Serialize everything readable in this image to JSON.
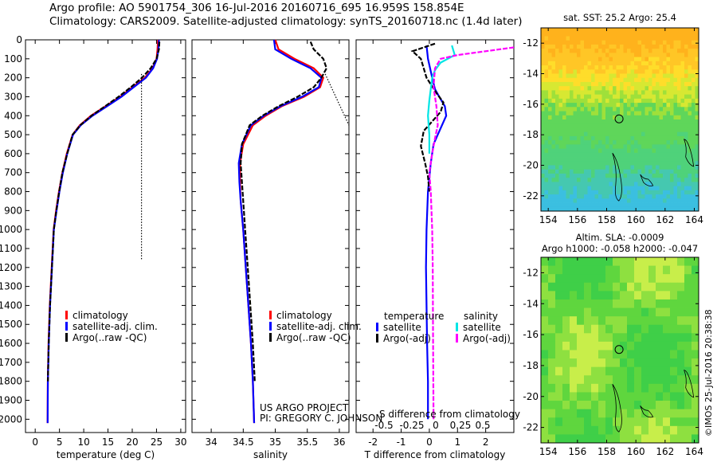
{
  "header": {
    "line1": "Argo profile: AO 5901754_306 16-Jul-2016 20160716_695 16.959S 158.854E",
    "line2": "Climatology: CARS2009. Satellite-adjusted climatology: synTS_20160718.nc (1.4d later)"
  },
  "colors": {
    "climatology": "#ff0000",
    "satellite": "#0000ff",
    "argo": "#000000",
    "argo_adj_sal": "#ff00ff",
    "satellite_sal": "#00e5e5"
  },
  "chart_data": [
    {
      "type": "line",
      "id": "temperature",
      "xlabel": "temperature (deg C)",
      "ylabel": "",
      "xlim": [
        -2,
        31
      ],
      "ylim": [
        2070,
        0
      ],
      "xticks": [
        0,
        5,
        10,
        15,
        20,
        25,
        30
      ],
      "yticks": [
        0,
        100,
        200,
        300,
        400,
        500,
        600,
        700,
        800,
        900,
        1000,
        1100,
        1200,
        1300,
        1400,
        1500,
        1600,
        1700,
        1800,
        1900,
        2000
      ],
      "legend": [
        "climatology",
        "satellite-adj. clim.",
        "Argo(..raw -QC)"
      ],
      "series": [
        {
          "name": "climatology",
          "color": "#ff0000",
          "x": [
            25.3,
            25.2,
            25.0,
            24.2,
            22.6,
            20.0,
            17.5,
            14.5,
            11.5,
            9.2,
            7.7,
            6.5,
            5.6,
            4.9,
            4.3,
            3.8,
            3.4,
            3.0,
            2.75,
            2.6,
            2.55
          ],
          "y": [
            0,
            50,
            100,
            150,
            200,
            250,
            300,
            350,
            400,
            450,
            500,
            600,
            700,
            800,
            900,
            1000,
            1200,
            1400,
            1600,
            1800,
            2020
          ]
        },
        {
          "name": "satellite-adj. clim.",
          "color": "#0000ff",
          "x": [
            25.5,
            25.4,
            25.1,
            24.3,
            22.8,
            20.3,
            17.8,
            14.8,
            11.8,
            9.4,
            7.8,
            6.6,
            5.7,
            5.0,
            4.4,
            3.85,
            3.45,
            3.05,
            2.8,
            2.62,
            2.57
          ],
          "y": [
            0,
            50,
            100,
            150,
            200,
            250,
            300,
            350,
            400,
            450,
            500,
            600,
            700,
            800,
            900,
            1000,
            1200,
            1400,
            1600,
            1800,
            2020
          ]
        },
        {
          "name": "Argo(..raw -QC)",
          "color": "#000000",
          "x": [
            25.6,
            25.5,
            25.0,
            23.8,
            22.0,
            19.7,
            17.2,
            14.4,
            11.6,
            9.3,
            7.7,
            6.6,
            5.6,
            4.95,
            4.35,
            3.85,
            3.45,
            3.05,
            2.8,
            2.62
          ],
          "y": [
            10,
            50,
            100,
            150,
            200,
            250,
            300,
            350,
            400,
            450,
            500,
            600,
            700,
            800,
            900,
            1000,
            1200,
            1400,
            1600,
            1800
          ]
        },
        {
          "name": "",
          "color": "#000000",
          "dotted": true,
          "x": [
            21.9,
            21.9
          ],
          "y": [
            180,
            1160
          ]
        }
      ]
    },
    {
      "type": "line",
      "id": "salinity",
      "xlabel": "salinity",
      "xlim": [
        33.7,
        36.15
      ],
      "ylim": [
        2070,
        0
      ],
      "xticks": [
        34,
        34.5,
        35,
        35.5,
        36
      ],
      "legend": [
        "climatology",
        "satellite-adj. clim.",
        "Argo(..raw -QC)"
      ],
      "annotations": [
        "US ARGO PROJECT",
        "PI: GREGORY C. JOHNSON"
      ],
      "series": [
        {
          "name": "climatology",
          "color": "#ff0000",
          "x": [
            35.0,
            35.05,
            35.3,
            35.6,
            35.75,
            35.7,
            35.45,
            35.1,
            34.85,
            34.65,
            34.5,
            34.45,
            34.45,
            34.46,
            34.5,
            34.54,
            34.58,
            34.62,
            34.65,
            34.67
          ],
          "y": [
            0,
            50,
            100,
            150,
            200,
            250,
            300,
            350,
            400,
            450,
            550,
            650,
            750,
            850,
            1000,
            1200,
            1400,
            1600,
            1800,
            2020
          ]
        },
        {
          "name": "satellite-adj. clim.",
          "color": "#0000ff",
          "x": [
            34.98,
            35.0,
            35.25,
            35.55,
            35.72,
            35.68,
            35.42,
            35.08,
            34.82,
            34.62,
            34.48,
            34.43,
            34.44,
            34.46,
            34.5,
            34.54,
            34.58,
            34.62,
            34.65,
            34.67
          ],
          "y": [
            0,
            50,
            100,
            150,
            200,
            250,
            300,
            350,
            400,
            450,
            550,
            650,
            750,
            850,
            1000,
            1200,
            1400,
            1600,
            1800,
            2020
          ]
        },
        {
          "name": "Argo(..raw -QC)",
          "color": "#000000",
          "x": [
            35.55,
            35.6,
            35.75,
            35.8,
            35.72,
            35.6,
            35.35,
            35.05,
            34.8,
            34.6,
            34.48,
            34.46,
            34.48,
            34.5,
            34.53,
            34.57,
            34.61,
            34.65,
            34.68
          ],
          "y": [
            10,
            50,
            100,
            150,
            200,
            250,
            300,
            350,
            400,
            450,
            550,
            650,
            750,
            850,
            1000,
            1200,
            1400,
            1600,
            1800
          ]
        },
        {
          "name": "",
          "color": "#000000",
          "dotted": true,
          "x": [
            35.78,
            36.15
          ],
          "y": [
            180,
            450
          ]
        }
      ]
    },
    {
      "type": "line",
      "id": "difference",
      "xlabel": "T difference from climatology",
      "xlabel2": "S difference from climatology",
      "xlim": [
        -2.6,
        3.0
      ],
      "xticks": [
        -2,
        -1,
        0,
        1,
        2
      ],
      "xticks2": [
        "-0.5",
        "-0.25",
        "0",
        "0.25",
        "0.5"
      ],
      "ylim": [
        2070,
        0
      ],
      "legend_titles": [
        "temperature",
        "salinity"
      ],
      "legend": [
        "satellite",
        "Argo(-adj)",
        "satellite",
        "Argo(-adj)"
      ],
      "series": [
        {
          "name": "temperature satellite",
          "color": "#0000ff",
          "x": [
            -0.1,
            -0.05,
            0.1,
            0.2,
            0.35,
            0.55,
            0.6,
            0.45,
            0.3,
            0.15,
            0.05,
            -0.05,
            -0.1,
            -0.12,
            -0.1,
            -0.08,
            -0.05,
            -0.05
          ],
          "y": [
            30,
            100,
            200,
            260,
            300,
            350,
            400,
            450,
            500,
            550,
            650,
            800,
            1000,
            1200,
            1400,
            1600,
            1800,
            2000
          ]
        },
        {
          "name": "temperature Argo(-adj)",
          "color": "#000000",
          "x": [
            0.2,
            -0.6,
            -0.3,
            -0.1,
            0.25,
            0.5,
            0.4,
            0.1,
            -0.2,
            -0.3,
            -0.15,
            -0.05,
            0.0
          ],
          "y": [
            20,
            60,
            100,
            200,
            280,
            330,
            380,
            430,
            480,
            560,
            650,
            720,
            800
          ]
        },
        {
          "name": "salinity satellite",
          "color": "#00e5e5",
          "x": [
            0.8,
            0.9,
            0.4,
            0.2,
            0.1,
            0.05,
            0.0,
            -0.05,
            0.0,
            0.0
          ],
          "y": [
            30,
            80,
            120,
            160,
            200,
            260,
            320,
            400,
            500,
            600
          ]
        },
        {
          "name": "salinity Argo(-adj)",
          "color": "#ff00ff",
          "x": [
            3.0,
            2.0,
            1.0,
            0.4,
            0.2,
            0.15,
            0.25,
            0.3,
            0.2,
            0.1,
            0.0,
            0.05,
            0.1,
            0.12,
            0.13,
            0.14,
            0.15
          ],
          "y": [
            40,
            60,
            80,
            100,
            150,
            250,
            350,
            450,
            520,
            600,
            700,
            800,
            1000,
            1200,
            1500,
            1800,
            2000
          ]
        }
      ]
    },
    {
      "type": "heatmap",
      "id": "sst-map",
      "title": "sat. SST: 25.2  Argo: 25.4",
      "xticks": [
        154,
        156,
        158,
        160,
        162,
        164
      ],
      "yticks": [
        -12,
        -14,
        -16,
        -18,
        -20,
        -22
      ],
      "xlim": [
        153.5,
        164.3
      ],
      "ylim": [
        -23,
        -11
      ],
      "marker": [
        158.85,
        -16.96
      ]
    },
    {
      "type": "heatmap",
      "id": "sla-map",
      "title": "Altim. SLA: -0.0009",
      "subtitle": "Argo h1000: -0.058  h2000: -0.047",
      "xticks": [
        154,
        156,
        158,
        160,
        162,
        164
      ],
      "yticks": [
        -12,
        -14,
        -16,
        -18,
        -20,
        -22
      ],
      "xlim": [
        153.5,
        164.3
      ],
      "ylim": [
        -23,
        -11
      ],
      "marker": [
        158.85,
        -16.96
      ]
    }
  ],
  "footer_credit": "©IMOS 25-Jul-2016 20:38:38"
}
